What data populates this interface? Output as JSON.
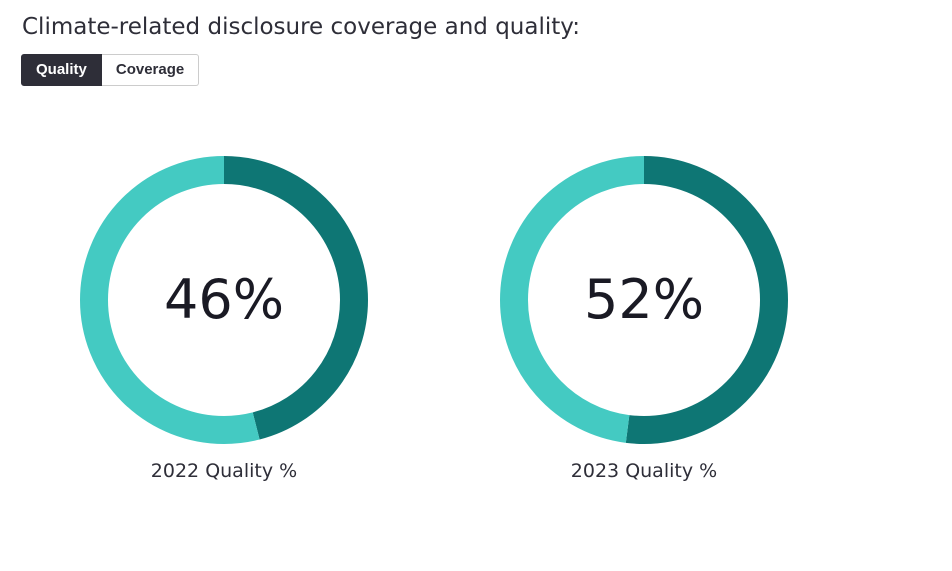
{
  "page": {
    "title": "Climate-related disclosure coverage and quality:"
  },
  "toggle": {
    "quality_label": "Quality",
    "coverage_label": "Coverage",
    "selected": "Quality"
  },
  "colors": {
    "primary": "#0e7674",
    "secondary": "#44cac2",
    "toggle_active_bg": "#2e2e38"
  },
  "chart_data": [
    {
      "type": "pie",
      "style": "donut",
      "label": "2022 Quality %",
      "value": 46,
      "center_text": "46%",
      "values": [
        46,
        54
      ]
    },
    {
      "type": "pie",
      "style": "donut",
      "label": "2023 Quality %",
      "value": 52,
      "center_text": "52%",
      "values": [
        52,
        48
      ]
    }
  ]
}
